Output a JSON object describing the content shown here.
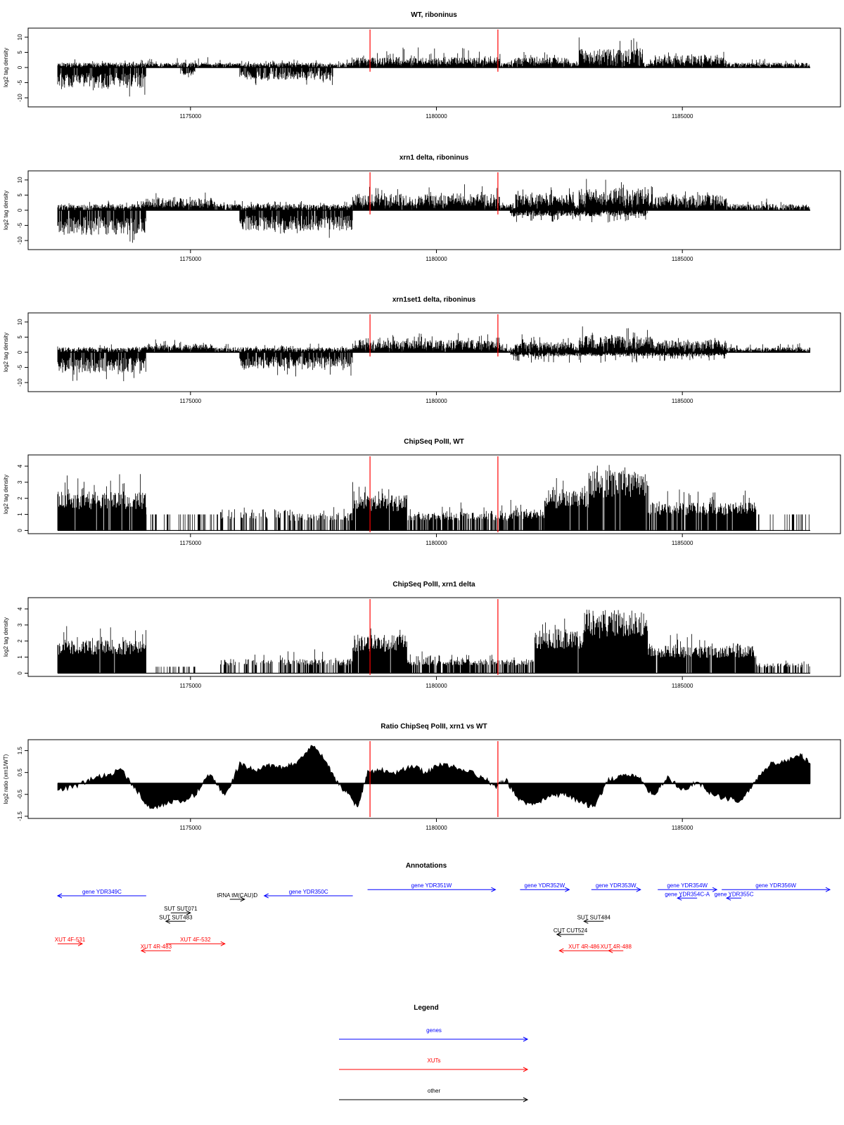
{
  "figure": {
    "background": "#ffffff"
  },
  "chart_data": [
    {
      "type": "bar",
      "title": "WT, riboninus",
      "ylabel": "log2 tag density",
      "ylim": [
        -13,
        13
      ],
      "yticks": [
        -10,
        -5,
        0,
        5,
        10
      ],
      "xlim": [
        1172200,
        1187800
      ],
      "xticks": [
        1175000,
        1180000,
        1185000
      ],
      "markers": [
        1178650,
        1181250
      ],
      "marker_color": "#ff0000",
      "mode": "strand",
      "segments": [
        {
          "from": 1172300,
          "to": 1187600,
          "sign": 1,
          "base": 1.2,
          "amp": 2.0
        },
        {
          "from": 1172300,
          "to": 1174100,
          "sign": -1,
          "base": 5.0,
          "amp": 3.0
        },
        {
          "from": 1174800,
          "to": 1175100,
          "sign": -1,
          "base": 2.0,
          "amp": 2.0
        },
        {
          "from": 1176000,
          "to": 1177900,
          "sign": -1,
          "base": 3.0,
          "amp": 2.0
        },
        {
          "from": 1178300,
          "to": 1181300,
          "sign": 1,
          "base": 2.5,
          "amp": 3.5
        },
        {
          "from": 1181600,
          "to": 1182700,
          "sign": 1,
          "base": 2.5,
          "amp": 3.0
        },
        {
          "from": 1182900,
          "to": 1184200,
          "sign": 1,
          "base": 4.5,
          "amp": 4.5
        },
        {
          "from": 1184400,
          "to": 1185900,
          "sign": 1,
          "base": 3.0,
          "amp": 2.0
        }
      ]
    },
    {
      "type": "bar",
      "title": "xrn1 delta, riboninus",
      "ylabel": "log2 tag density",
      "ylim": [
        -13,
        13
      ],
      "yticks": [
        -10,
        -5,
        0,
        5,
        10
      ],
      "xlim": [
        1172200,
        1187800
      ],
      "xticks": [
        1175000,
        1180000,
        1185000
      ],
      "markers": [
        1178650,
        1181250
      ],
      "marker_color": "#ff0000",
      "mode": "strand",
      "segments": [
        {
          "from": 1172300,
          "to": 1187600,
          "sign": 1,
          "base": 1.5,
          "amp": 2.0
        },
        {
          "from": 1172300,
          "to": 1174100,
          "sign": -1,
          "base": 6.0,
          "amp": 4.0
        },
        {
          "from": 1174000,
          "to": 1175500,
          "sign": 1,
          "base": 3.0,
          "amp": 2.5
        },
        {
          "from": 1176000,
          "to": 1178300,
          "sign": -1,
          "base": 5.0,
          "amp": 3.0
        },
        {
          "from": 1178300,
          "to": 1181300,
          "sign": 1,
          "base": 4.0,
          "amp": 3.5
        },
        {
          "from": 1181600,
          "to": 1182800,
          "sign": 1,
          "base": 4.0,
          "amp": 3.0
        },
        {
          "from": 1182900,
          "to": 1184400,
          "sign": 1,
          "base": 5.5,
          "amp": 4.0
        },
        {
          "from": 1184400,
          "to": 1185900,
          "sign": 1,
          "base": 4.0,
          "amp": 2.0
        },
        {
          "from": 1181500,
          "to": 1184300,
          "sign": -1,
          "base": 1.5,
          "amp": 3.0
        }
      ]
    },
    {
      "type": "bar",
      "title": "xrn1set1 delta, riboninus",
      "ylabel": "log2 tag density",
      "ylim": [
        -13,
        13
      ],
      "yticks": [
        -10,
        -5,
        0,
        5,
        10
      ],
      "xlim": [
        1172200,
        1187800
      ],
      "xticks": [
        1175000,
        1180000,
        1185000
      ],
      "markers": [
        1178650,
        1181250
      ],
      "marker_color": "#ff0000",
      "mode": "strand",
      "segments": [
        {
          "from": 1172300,
          "to": 1187600,
          "sign": 1,
          "base": 1.2,
          "amp": 2.0
        },
        {
          "from": 1172300,
          "to": 1174100,
          "sign": -1,
          "base": 5.0,
          "amp": 3.5
        },
        {
          "from": 1174000,
          "to": 1175500,
          "sign": 1,
          "base": 2.0,
          "amp": 2.0
        },
        {
          "from": 1176000,
          "to": 1178300,
          "sign": -1,
          "base": 4.0,
          "amp": 3.0
        },
        {
          "from": 1178300,
          "to": 1181300,
          "sign": 1,
          "base": 3.0,
          "amp": 3.5
        },
        {
          "from": 1181600,
          "to": 1182800,
          "sign": 1,
          "base": 2.5,
          "amp": 3.0
        },
        {
          "from": 1182900,
          "to": 1184400,
          "sign": 1,
          "base": 4.0,
          "amp": 4.5
        },
        {
          "from": 1184400,
          "to": 1185900,
          "sign": 1,
          "base": 3.0,
          "amp": 2.0
        },
        {
          "from": 1181500,
          "to": 1185900,
          "sign": -1,
          "base": 1.0,
          "amp": 2.5
        }
      ]
    },
    {
      "type": "bar",
      "title": "ChipSeq PolII, WT",
      "ylabel": "log2 tag density",
      "ylim": [
        -0.2,
        4.7
      ],
      "yticks": [
        0,
        1,
        2,
        3,
        4
      ],
      "xlim": [
        1172200,
        1187800
      ],
      "xticks": [
        1175000,
        1180000,
        1185000
      ],
      "markers": [
        1178650,
        1181250
      ],
      "marker_color": "#ff0000",
      "mode": "density",
      "segments": [
        {
          "from": 1172300,
          "to": 1174100,
          "base": 2.2,
          "amp": 1.3,
          "density": 0.95
        },
        {
          "from": 1174100,
          "to": 1175600,
          "base": 1.0,
          "amp": 0.0,
          "density": 0.25
        },
        {
          "from": 1175600,
          "to": 1177000,
          "base": 1.2,
          "amp": 0.6,
          "density": 0.45
        },
        {
          "from": 1177000,
          "to": 1178300,
          "base": 1.0,
          "amp": 0.6,
          "density": 0.5
        },
        {
          "from": 1178300,
          "to": 1179400,
          "base": 2.0,
          "amp": 1.0,
          "density": 0.95
        },
        {
          "from": 1179400,
          "to": 1181500,
          "base": 1.0,
          "amp": 0.7,
          "density": 0.75
        },
        {
          "from": 1181500,
          "to": 1182200,
          "base": 1.2,
          "amp": 0.8,
          "density": 0.9
        },
        {
          "from": 1182200,
          "to": 1183100,
          "base": 2.3,
          "amp": 1.0,
          "density": 0.95
        },
        {
          "from": 1183100,
          "to": 1184300,
          "base": 3.4,
          "amp": 1.0,
          "density": 0.98
        },
        {
          "from": 1184300,
          "to": 1186500,
          "base": 1.6,
          "amp": 1.2,
          "density": 0.9
        },
        {
          "from": 1186500,
          "to": 1187600,
          "base": 1.0,
          "amp": 0.0,
          "density": 0.2
        }
      ]
    },
    {
      "type": "bar",
      "title": "ChipSeq PolII, xrn1 delta",
      "ylabel": "log2 tag density",
      "ylim": [
        -0.2,
        4.7
      ],
      "yticks": [
        0,
        1,
        2,
        3,
        4
      ],
      "xlim": [
        1172200,
        1187800
      ],
      "xticks": [
        1175000,
        1180000,
        1185000
      ],
      "markers": [
        1178650,
        1181250
      ],
      "marker_color": "#ff0000",
      "mode": "density",
      "segments": [
        {
          "from": 1172300,
          "to": 1174100,
          "base": 1.9,
          "amp": 1.0,
          "density": 0.97
        },
        {
          "from": 1174300,
          "to": 1175100,
          "base": 0.4,
          "amp": 0.0,
          "density": 0.3
        },
        {
          "from": 1175600,
          "to": 1177000,
          "base": 0.8,
          "amp": 0.7,
          "density": 0.5
        },
        {
          "from": 1177000,
          "to": 1178300,
          "base": 0.8,
          "amp": 0.7,
          "density": 0.55
        },
        {
          "from": 1178300,
          "to": 1179400,
          "base": 2.2,
          "amp": 0.8,
          "density": 0.98
        },
        {
          "from": 1179400,
          "to": 1181500,
          "base": 0.8,
          "amp": 0.6,
          "density": 0.8
        },
        {
          "from": 1181500,
          "to": 1182000,
          "base": 0.8,
          "amp": 0.4,
          "density": 0.8
        },
        {
          "from": 1182000,
          "to": 1183000,
          "base": 2.5,
          "amp": 0.8,
          "density": 0.98
        },
        {
          "from": 1183000,
          "to": 1184300,
          "base": 3.6,
          "amp": 0.6,
          "density": 1.0
        },
        {
          "from": 1184300,
          "to": 1186500,
          "base": 1.6,
          "amp": 0.9,
          "density": 0.95
        },
        {
          "from": 1186500,
          "to": 1187600,
          "base": 0.6,
          "amp": 0.2,
          "density": 0.5
        }
      ]
    },
    {
      "type": "area",
      "title": "Ratio ChipSeq PolII, xrn1 vs WT",
      "ylabel": "log2 ratio (xrn1/WT)",
      "ylim": [
        -1.6,
        2.0
      ],
      "yticks": [
        -1.5,
        -0.5,
        0.5,
        1.5
      ],
      "xlim": [
        1172200,
        1187800
      ],
      "xticks": [
        1175000,
        1180000,
        1185000
      ],
      "markers": [
        1178650,
        1181250
      ],
      "marker_color": "#ff0000",
      "x": [
        1172300,
        1172700,
        1173000,
        1173300,
        1173600,
        1173900,
        1174200,
        1174500,
        1174800,
        1175100,
        1175400,
        1175700,
        1176000,
        1176300,
        1176600,
        1176900,
        1177200,
        1177500,
        1177800,
        1178000,
        1178200,
        1178400,
        1178600,
        1178900,
        1179200,
        1179500,
        1179800,
        1180100,
        1180400,
        1180700,
        1181000,
        1181200,
        1181400,
        1181700,
        1182000,
        1182300,
        1182600,
        1182900,
        1183200,
        1183500,
        1183800,
        1184100,
        1184400,
        1184700,
        1185000,
        1185300,
        1185600,
        1185900,
        1186200,
        1186500,
        1186800,
        1187100,
        1187400,
        1187600
      ],
      "y": [
        -0.3,
        -0.1,
        0.2,
        0.4,
        0.6,
        -0.3,
        -1.2,
        -0.9,
        -0.8,
        -0.5,
        0.5,
        -0.6,
        0.9,
        0.6,
        0.8,
        0.7,
        1.0,
        1.8,
        0.8,
        0.0,
        -0.5,
        -1.1,
        0.5,
        0.6,
        0.5,
        0.8,
        0.5,
        0.9,
        0.7,
        0.5,
        0.2,
        -0.2,
        0.2,
        -0.8,
        -1.0,
        -0.6,
        -0.5,
        -0.8,
        -1.1,
        0.2,
        0.3,
        0.4,
        -0.6,
        0.3,
        -0.3,
        0.1,
        -0.5,
        -0.7,
        -0.8,
        0.2,
        0.9,
        1.0,
        1.3,
        0.9
      ]
    }
  ],
  "annotations": {
    "title": "Annotations",
    "features": [
      {
        "label": "gene YDR349C",
        "type": "genes",
        "x1": 1172300,
        "x2": 1174100,
        "dir": "left",
        "row": 0
      },
      {
        "label": "gene YDR350C",
        "type": "genes",
        "x1": 1176500,
        "x2": 1178300,
        "dir": "left",
        "row": 0
      },
      {
        "label": "tRNA tM(CAU)D",
        "type": "other",
        "x1": 1175800,
        "x2": 1176100,
        "dir": "right",
        "row": 0.45
      },
      {
        "label": "gene YDR351W",
        "type": "genes",
        "x1": 1178600,
        "x2": 1181200,
        "dir": "right",
        "row": -0.8
      },
      {
        "label": "gene YDR352W",
        "type": "genes",
        "x1": 1181700,
        "x2": 1182700,
        "dir": "right",
        "row": -0.8
      },
      {
        "label": "gene YDR353W",
        "type": "genes",
        "x1": 1183150,
        "x2": 1184150,
        "dir": "right",
        "row": -0.8
      },
      {
        "label": "gene YDR354W",
        "type": "genes",
        "x1": 1184500,
        "x2": 1185700,
        "dir": "right",
        "row": -0.8
      },
      {
        "label": "gene YDR354C-A",
        "type": "genes",
        "x1": 1184900,
        "x2": 1185300,
        "dir": "left",
        "row": 0.3
      },
      {
        "label": "gene YDR355C",
        "type": "genes",
        "x1": 1185900,
        "x2": 1186200,
        "dir": "left",
        "row": 0.3
      },
      {
        "label": "gene YDR356W",
        "type": "genes",
        "x1": 1185800,
        "x2": 1188000,
        "dir": "right",
        "row": -0.8
      },
      {
        "label": "SUT SUT071",
        "type": "other",
        "x1": 1174600,
        "x2": 1175000,
        "dir": "right",
        "row": 2.2
      },
      {
        "label": "SUT SUT483",
        "type": "other",
        "x1": 1174500,
        "x2": 1174900,
        "dir": "left",
        "row": 3.3
      },
      {
        "label": "SUT SUT484",
        "type": "other",
        "x1": 1183000,
        "x2": 1183400,
        "dir": "left",
        "row": 3.3
      },
      {
        "label": "CUT CUT524",
        "type": "other",
        "x1": 1182450,
        "x2": 1183000,
        "dir": "left",
        "row": 5.0
      },
      {
        "label": "XUT 4F-531",
        "type": "XUTs",
        "x1": 1172300,
        "x2": 1172800,
        "dir": "right",
        "row": 6.2
      },
      {
        "label": "XUT 4F-532",
        "type": "XUTs",
        "x1": 1174500,
        "x2": 1175700,
        "dir": "right",
        "row": 6.2
      },
      {
        "label": "XUT 4R-483",
        "type": "XUTs",
        "x1": 1174000,
        "x2": 1174600,
        "dir": "left",
        "row": 7.1
      },
      {
        "label": "XUT 4R-486",
        "type": "XUTs",
        "x1": 1182500,
        "x2": 1183500,
        "dir": "left",
        "row": 7.1
      },
      {
        "label": "XUT 4R-488",
        "type": "XUTs",
        "x1": 1183500,
        "x2": 1183800,
        "dir": "left",
        "row": 7.1
      }
    ]
  },
  "legend": {
    "title": "Legend",
    "items": [
      {
        "label": "genes",
        "color": "#0000ff"
      },
      {
        "label": "XUTs",
        "color": "#ff0000"
      },
      {
        "label": "other",
        "color": "#000000"
      }
    ]
  }
}
